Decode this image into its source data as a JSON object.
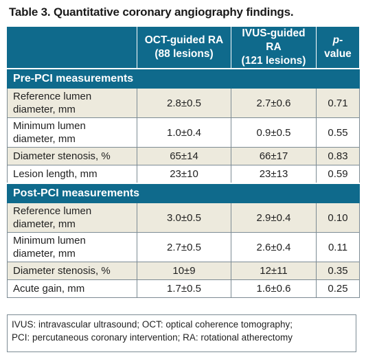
{
  "title": "Table 3. Quantitative coronary angiography findings.",
  "header": {
    "col1": "",
    "col2_line1": "OCT-guided RA",
    "col2_line2": "(88 lesions)",
    "col3_line1": "IVUS-guided RA",
    "col3_line2": "(121 lesions)",
    "col4_italic": "p",
    "col4_rest": "-value"
  },
  "sections": {
    "pre": {
      "title": "Pre-PCI measurements",
      "rows": [
        {
          "label_line1": "Reference lumen",
          "label_line2": "diameter, mm",
          "oct": "2.8±0.5",
          "ivus": "2.7±0.6",
          "p": "0.71"
        },
        {
          "label_line1": "Minimum lumen",
          "label_line2": "diameter, mm",
          "oct": "1.0±0.4",
          "ivus": "0.9±0.5",
          "p": "0.55"
        },
        {
          "label_line1": "Diameter stenosis, %",
          "label_line2": "",
          "oct": "65±14",
          "ivus": "66±17",
          "p": "0.83"
        },
        {
          "label_line1": "Lesion length, mm",
          "label_line2": "",
          "oct": "23±10",
          "ivus": "23±13",
          "p": "0.59"
        }
      ]
    },
    "post": {
      "title": "Post-PCI measurements",
      "rows": [
        {
          "label_line1": "Reference lumen",
          "label_line2": "diameter, mm",
          "oct": "3.0±0.5",
          "ivus": "2.9±0.4",
          "p": "0.10"
        },
        {
          "label_line1": "Minimum lumen",
          "label_line2": "diameter, mm",
          "oct": "2.7±0.5",
          "ivus": "2.6±0.4",
          "p": "0.11"
        },
        {
          "label_line1": "Diameter stenosis, %",
          "label_line2": "",
          "oct": "10±9",
          "ivus": "12±11",
          "p": "0.35"
        },
        {
          "label_line1": "Acute gain, mm",
          "label_line2": "",
          "oct": "1.7±0.5",
          "ivus": "1.6±0.6",
          "p": "0.25"
        }
      ]
    }
  },
  "footnote": {
    "line1": "IVUS: intravascular ultrasound; OCT: optical coherence tomography;",
    "line2": "PCI: percutaneous coronary intervention; RA: rotational atherectomy"
  },
  "colors": {
    "header_bg": "#0f6a8c",
    "shade_bg": "#edeadd",
    "border": "#7b8a93"
  }
}
